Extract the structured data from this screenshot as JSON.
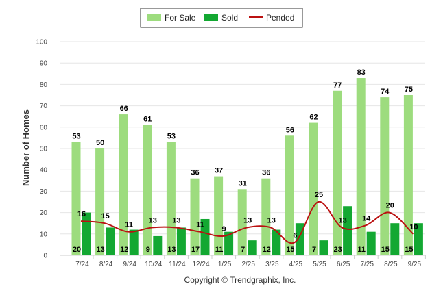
{
  "chart_data": {
    "type": "bar",
    "ylabel": "Number of Homes",
    "xlabel": "",
    "ylim": [
      0,
      100
    ],
    "yticks": [
      0,
      10,
      20,
      30,
      40,
      50,
      60,
      70,
      80,
      90,
      100
    ],
    "grid": true,
    "legend_position": "top-center",
    "categories": [
      "7/24",
      "8/24",
      "9/24",
      "10/24",
      "11/24",
      "12/24",
      "1/25",
      "2/25",
      "3/25",
      "4/25",
      "5/25",
      "6/25",
      "7/25",
      "8/25",
      "9/25"
    ],
    "series": [
      {
        "name": "For Sale",
        "kind": "bar",
        "color": "#9ddc7e",
        "values": [
          53,
          50,
          66,
          61,
          53,
          36,
          37,
          31,
          36,
          56,
          62,
          77,
          83,
          74,
          75
        ]
      },
      {
        "name": "Sold",
        "kind": "bar",
        "color": "#13a832",
        "values": [
          20,
          13,
          12,
          9,
          13,
          17,
          11,
          7,
          12,
          15,
          7,
          23,
          11,
          15,
          15
        ]
      },
      {
        "name": "Pended",
        "kind": "line",
        "color": "#bb1111",
        "values": [
          16,
          15,
          11,
          13,
          13,
          11,
          9,
          13,
          13,
          6,
          25,
          13,
          14,
          20,
          10
        ]
      }
    ]
  },
  "copyright": "Copyright © Trendgraphix, Inc."
}
